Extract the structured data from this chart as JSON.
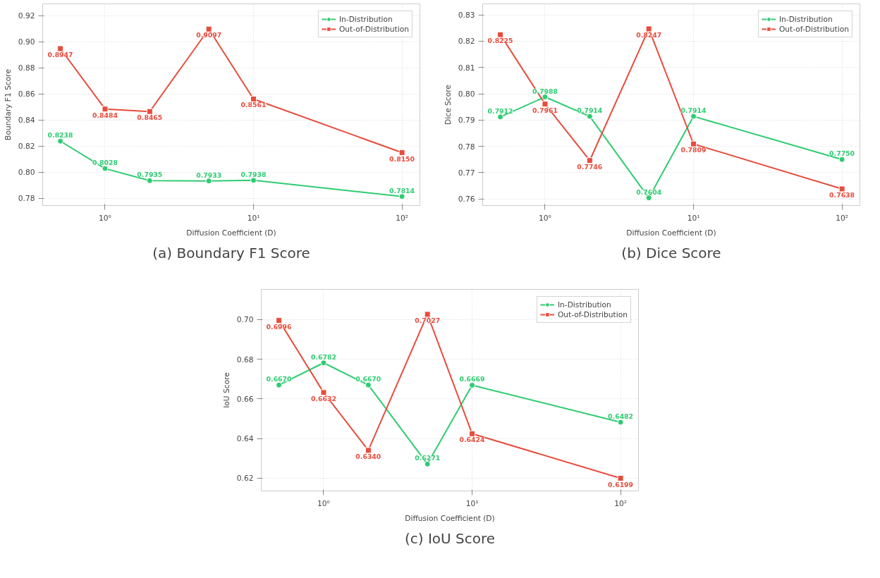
{
  "chart_data": [
    {
      "type": "line",
      "title": "(a) Boundary F1 Score",
      "xlabel": "Diffusion Coefficient (D)",
      "ylabel": "Boundary F1 Score",
      "x": [
        0.5,
        1,
        2,
        5,
        10,
        100
      ],
      "log": "x",
      "xlim": [
        0.38,
        132
      ],
      "ylim": [
        0.7745,
        0.929
      ],
      "xticks": [
        {
          "value": 1,
          "label": "10⁰"
        },
        {
          "value": 10,
          "label": "10¹"
        },
        {
          "value": 100,
          "label": "10²"
        }
      ],
      "yticks": [
        {
          "value": 0.78,
          "label": "0.78"
        },
        {
          "value": 0.8,
          "label": "0.80"
        },
        {
          "value": 0.82,
          "label": "0.82"
        },
        {
          "value": 0.84,
          "label": "0.84"
        },
        {
          "value": 0.86,
          "label": "0.86"
        },
        {
          "value": 0.88,
          "label": "0.88"
        },
        {
          "value": 0.9,
          "label": "0.90"
        },
        {
          "value": 0.92,
          "label": "0.92"
        }
      ],
      "grid": true,
      "legend": "top right",
      "series": [
        {
          "name": "In-Distribution",
          "color": "#2ecc71",
          "marker": "circle",
          "values": [
            0.8238,
            0.8028,
            0.7935,
            0.7933,
            0.7938,
            0.7814
          ],
          "value_labels": [
            "0.8238",
            "0.8028",
            "0.7935",
            "0.7933",
            "0.7938",
            "0.7814"
          ]
        },
        {
          "name": "Out-of-Distribution",
          "color": "#e74c3c",
          "marker": "square",
          "values": [
            0.8947,
            0.8484,
            0.8465,
            0.9097,
            0.8561,
            0.815
          ],
          "value_labels": [
            "0.8947",
            "0.8484",
            "0.8465",
            "0.9097",
            "0.8561",
            "0.8150"
          ]
        }
      ]
    },
    {
      "type": "line",
      "title": "(b) Dice Score",
      "xlabel": "Diffusion Coefficient (D)",
      "ylabel": "Dice Score",
      "x": [
        0.5,
        1,
        2,
        5,
        10,
        100
      ],
      "log": "x",
      "xlim": [
        0.38,
        132
      ],
      "ylim": [
        0.7575,
        0.8342
      ],
      "xticks": [
        {
          "value": 1,
          "label": "10⁰"
        },
        {
          "value": 10,
          "label": "10¹"
        },
        {
          "value": 100,
          "label": "10²"
        }
      ],
      "yticks": [
        {
          "value": 0.76,
          "label": "0.76"
        },
        {
          "value": 0.77,
          "label": "0.77"
        },
        {
          "value": 0.78,
          "label": "0.78"
        },
        {
          "value": 0.79,
          "label": "0.79"
        },
        {
          "value": 0.8,
          "label": "0.80"
        },
        {
          "value": 0.81,
          "label": "0.81"
        },
        {
          "value": 0.82,
          "label": "0.82"
        },
        {
          "value": 0.83,
          "label": "0.83"
        }
      ],
      "grid": true,
      "legend": "top right",
      "series": [
        {
          "name": "In-Distribution",
          "color": "#2ecc71",
          "marker": "circle",
          "values": [
            0.7912,
            0.7988,
            0.7914,
            0.7604,
            0.7914,
            0.775
          ],
          "value_labels": [
            "0.7912",
            "0.7988",
            "0.7914",
            "0.7604",
            "0.7914",
            "0.7750"
          ]
        },
        {
          "name": "Out-of-Distribution",
          "color": "#e74c3c",
          "marker": "square",
          "values": [
            0.8225,
            0.7961,
            0.7746,
            0.8247,
            0.7809,
            0.7638
          ],
          "value_labels": [
            "0.8225",
            "0.7961",
            "0.7746",
            "0.8247",
            "0.7809",
            "0.7638"
          ]
        }
      ]
    },
    {
      "type": "line",
      "title": "(c) IoU Score",
      "xlabel": "Diffusion Coefficient (D)",
      "ylabel": "IoU Score",
      "x": [
        0.5,
        1,
        2,
        5,
        10,
        100
      ],
      "log": "x",
      "xlim": [
        0.38,
        132
      ],
      "ylim": [
        0.6135,
        0.7153
      ],
      "xticks": [
        {
          "value": 1,
          "label": "10⁰"
        },
        {
          "value": 10,
          "label": "10¹"
        },
        {
          "value": 100,
          "label": "10²"
        }
      ],
      "yticks": [
        {
          "value": 0.62,
          "label": "0.62"
        },
        {
          "value": 0.64,
          "label": "0.64"
        },
        {
          "value": 0.66,
          "label": "0.66"
        },
        {
          "value": 0.68,
          "label": "0.68"
        },
        {
          "value": 0.7,
          "label": "0.70"
        }
      ],
      "grid": true,
      "legend": "top right",
      "series": [
        {
          "name": "In-Distribution",
          "color": "#2ecc71",
          "marker": "circle",
          "values": [
            0.667,
            0.6782,
            0.667,
            0.6271,
            0.6669,
            0.6482
          ],
          "value_labels": [
            "0.6670",
            "0.6782",
            "0.6670",
            "0.6271",
            "0.6669",
            "0.6482"
          ]
        },
        {
          "name": "Out-of-Distribution",
          "color": "#e74c3c",
          "marker": "square",
          "values": [
            0.6996,
            0.6632,
            0.634,
            0.7027,
            0.6424,
            0.6199
          ],
          "value_labels": [
            "0.6996",
            "0.6632",
            "0.6340",
            "0.7027",
            "0.6424",
            "0.6199"
          ]
        }
      ]
    }
  ]
}
